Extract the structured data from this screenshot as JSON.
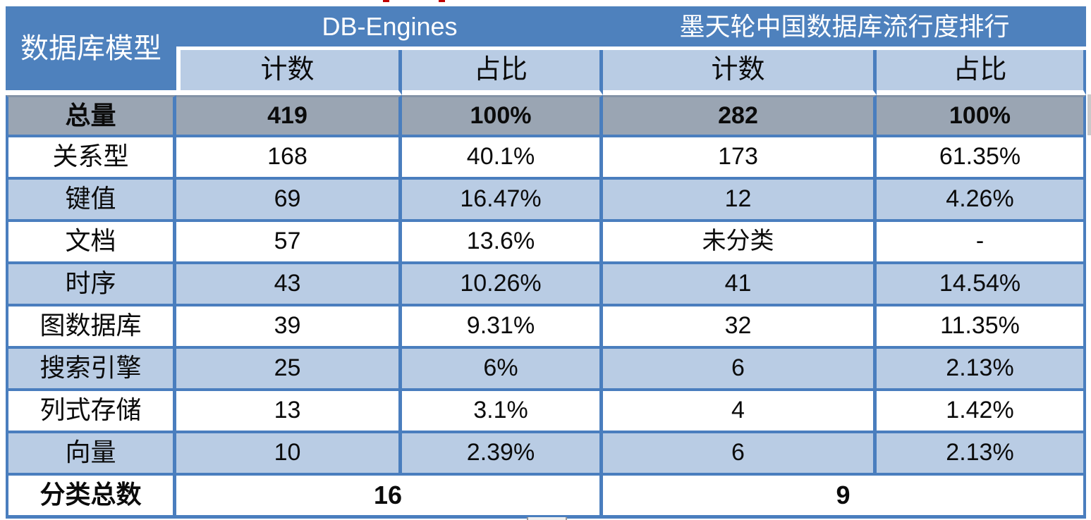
{
  "table": {
    "model_header": "数据库模型",
    "groups": [
      {
        "label": "DB-Engines"
      },
      {
        "label": "墨天轮中国数据库流行度排行"
      }
    ],
    "subheaders": [
      "计数",
      "占比",
      "计数",
      "占比"
    ],
    "rows": [
      {
        "label": "总量",
        "values": [
          "419",
          "100%",
          "282",
          "100%"
        ],
        "style": "total"
      },
      {
        "label": "关系型",
        "values": [
          "168",
          "40.1%",
          "173",
          "61.35%"
        ],
        "style": "white"
      },
      {
        "label": "键值",
        "values": [
          "69",
          "16.47%",
          "12",
          "4.26%"
        ],
        "style": "blue"
      },
      {
        "label": "文档",
        "values": [
          "57",
          "13.6%",
          "未分类",
          "-"
        ],
        "style": "white"
      },
      {
        "label": "时序",
        "values": [
          "43",
          "10.26%",
          "41",
          "14.54%"
        ],
        "style": "blue"
      },
      {
        "label": "图数据库",
        "values": [
          "39",
          "9.31%",
          "32",
          "11.35%"
        ],
        "style": "white"
      },
      {
        "label": "搜索引擎",
        "values": [
          "25",
          "6%",
          "6",
          "2.13%"
        ],
        "style": "blue"
      },
      {
        "label": "列式存储",
        "values": [
          "13",
          "3.1%",
          "4",
          "1.42%"
        ],
        "style": "white"
      },
      {
        "label": "向量",
        "values": [
          "10",
          "2.39%",
          "6",
          "2.13%"
        ],
        "style": "blue"
      }
    ],
    "footer": {
      "label": "分类总数",
      "values": [
        "16",
        "9"
      ]
    }
  },
  "chart_data": {
    "type": "table",
    "title": "",
    "column_groups": [
      {
        "label": "数据库模型",
        "span": 1
      },
      {
        "label": "DB-Engines",
        "span": 2
      },
      {
        "label": "墨天轮中国数据库流行度排行",
        "span": 2
      }
    ],
    "columns": [
      "数据库模型",
      "计数",
      "占比",
      "计数",
      "占比"
    ],
    "rows": [
      [
        "总量",
        "419",
        "100%",
        "282",
        "100%"
      ],
      [
        "关系型",
        "168",
        "40.1%",
        "173",
        "61.35%"
      ],
      [
        "键值",
        "69",
        "16.47%",
        "12",
        "4.26%"
      ],
      [
        "文档",
        "57",
        "13.6%",
        "未分类",
        "-"
      ],
      [
        "时序",
        "43",
        "10.26%",
        "41",
        "14.54%"
      ],
      [
        "图数据库",
        "39",
        "9.31%",
        "32",
        "11.35%"
      ],
      [
        "搜索引擎",
        "25",
        "6%",
        "6",
        "2.13%"
      ],
      [
        "列式存储",
        "13",
        "3.1%",
        "4",
        "1.42%"
      ],
      [
        "向量",
        "10",
        "2.39%",
        "6",
        "2.13%"
      ]
    ],
    "footer_row": [
      "分类总数",
      "16",
      "9"
    ]
  },
  "colors": {
    "header_blue": "#4E81BD",
    "subheader_blue": "#B9CCE4",
    "row_alt_blue": "#B9CCE4",
    "total_row_gray": "#9AA5B3",
    "total_row_top_edge": "#8493A6",
    "border_blue": "#4A7EBE",
    "text_dark": "#0B0B0B",
    "header_text": "#FFFFFF",
    "artifact_red": "#C00000",
    "artifact_gray": "#C9C9C9"
  }
}
